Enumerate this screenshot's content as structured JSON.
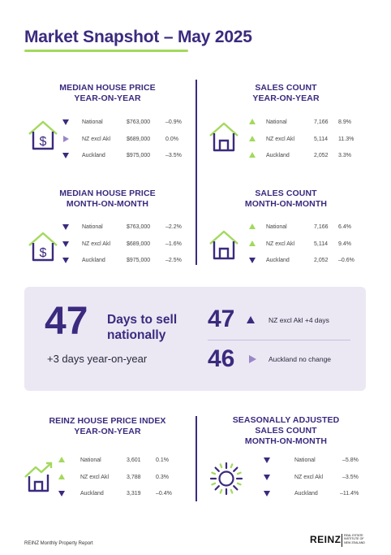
{
  "title": "Market Snapshot – May 2025",
  "sections": {
    "median_yoy": {
      "heading_1": "MEDIAN HOUSE PRICE",
      "heading_2": "YEAR-ON-YEAR",
      "icon": "house-dollar-icon",
      "rows": [
        {
          "region": "National",
          "value": "$763,000",
          "change": "–0.9%",
          "direction": "down"
        },
        {
          "region": "NZ excl Akl",
          "value": "$689,000",
          "change": "0.0%",
          "direction": "flat"
        },
        {
          "region": "Auckland",
          "value": "$975,000",
          "change": "–3.5%",
          "direction": "down"
        }
      ]
    },
    "sales_yoy": {
      "heading_1": "SALES COUNT",
      "heading_2": "YEAR-ON-YEAR",
      "icon": "house-icon",
      "rows": [
        {
          "region": "National",
          "value": "7,166",
          "change": "8.9%",
          "direction": "up"
        },
        {
          "region": "NZ excl Akl",
          "value": "5,114",
          "change": "11.3%",
          "direction": "up"
        },
        {
          "region": "Auckland",
          "value": "2,052",
          "change": "3.3%",
          "direction": "up"
        }
      ]
    },
    "median_mom": {
      "heading_1": "MEDIAN HOUSE PRICE",
      "heading_2": "MONTH-ON-MONTH",
      "icon": "house-dollar-icon",
      "rows": [
        {
          "region": "National",
          "value": "$763,000",
          "change": "–2.2%",
          "direction": "down"
        },
        {
          "region": "NZ excl Akl",
          "value": "$689,000",
          "change": "–1.6%",
          "direction": "down"
        },
        {
          "region": "Auckland",
          "value": "$975,000",
          "change": "–2.5%",
          "direction": "down"
        }
      ]
    },
    "sales_mom": {
      "heading_1": "SALES COUNT",
      "heading_2": "MONTH-ON-MONTH",
      "icon": "house-icon",
      "rows": [
        {
          "region": "National",
          "value": "7,166",
          "change": "6.4%",
          "direction": "up"
        },
        {
          "region": "NZ excl Akl",
          "value": "5,114",
          "change": "9.4%",
          "direction": "up"
        },
        {
          "region": "Auckland",
          "value": "2,052",
          "change": "–0.6%",
          "direction": "down"
        }
      ]
    },
    "hpi_yoy": {
      "heading_1": "REINZ HOUSE PRICE INDEX",
      "heading_2": "YEAR-ON-YEAR",
      "icon": "house-trend-icon",
      "rows": [
        {
          "region": "National",
          "value": "3,601",
          "change": "0.1%",
          "direction": "up"
        },
        {
          "region": "NZ excl Akl",
          "value": "3,788",
          "change": "0.3%",
          "direction": "up"
        },
        {
          "region": "Auckland",
          "value": "3,319",
          "change": "–0.4%",
          "direction": "down"
        }
      ]
    },
    "seasonal_mom": {
      "heading_1": "SEASONALLY ADJUSTED",
      "heading_2": "SALES COUNT",
      "heading_3": "MONTH-ON-MONTH",
      "icon": "sun-icon",
      "rows": [
        {
          "region": "National",
          "change": "–5.8%",
          "direction": "down"
        },
        {
          "region": "NZ excl Akl",
          "change": "–3.5%",
          "direction": "down"
        },
        {
          "region": "Auckland",
          "change": "–11.4%",
          "direction": "down"
        }
      ]
    }
  },
  "days_to_sell": {
    "national_days": "47",
    "label_1": "Days to sell",
    "label_2": "nationally",
    "yoy_text": "+3  days year-on-year",
    "nz_excl_akl_days": "47",
    "nz_excl_akl_label": "NZ excl Akl +4 days",
    "nz_excl_akl_direction": "up",
    "auckland_days": "46",
    "auckland_label": "Auckland no change",
    "auckland_direction": "flat"
  },
  "footer": {
    "report": "REINZ Monthly Property Report",
    "logo": "REINZ",
    "logo_sub": "REAL ESTATE INSTITUTE OF NEW ZEALAND"
  }
}
